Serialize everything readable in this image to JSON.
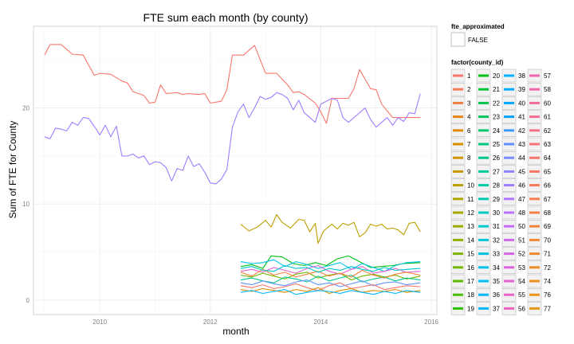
{
  "chart_data": {
    "type": "line",
    "title": "FTE sum each month (by county)",
    "xlabel": "month",
    "ylabel": "Sum of FTE for County",
    "xlim": [
      2008.8,
      2016.1
    ],
    "ylim": [
      -1.5,
      28.5
    ],
    "x_ticks": [
      2010,
      2012,
      2014,
      2016
    ],
    "y_ticks": [
      0,
      10,
      20
    ],
    "grid": true,
    "legend_position": "right",
    "legend_fte": {
      "title": "fte_approximated",
      "entries": [
        "FALSE"
      ]
    },
    "legend_county": {
      "title": "factor(county_id)",
      "entries": [
        {
          "label": "1",
          "color": "#F8766D"
        },
        {
          "label": "2",
          "color": "#F47B58"
        },
        {
          "label": "3",
          "color": "#EE7F3E"
        },
        {
          "label": "4",
          "color": "#E8841C"
        },
        {
          "label": "6",
          "color": "#E18A00"
        },
        {
          "label": "7",
          "color": "#D89000"
        },
        {
          "label": "8",
          "color": "#D09500"
        },
        {
          "label": "9",
          "color": "#C69A00"
        },
        {
          "label": "10",
          "color": "#BC9F00"
        },
        {
          "label": "11",
          "color": "#B2A400"
        },
        {
          "label": "12",
          "color": "#A7A800"
        },
        {
          "label": "13",
          "color": "#9BAC00"
        },
        {
          "label": "14",
          "color": "#8FB000"
        },
        {
          "label": "15",
          "color": "#81B400"
        },
        {
          "label": "16",
          "color": "#72B700"
        },
        {
          "label": "17",
          "color": "#61BA00"
        },
        {
          "label": "18",
          "color": "#4BBD00"
        },
        {
          "label": "19",
          "color": "#2BBF00"
        },
        {
          "label": "20",
          "color": "#00C114"
        },
        {
          "label": "21",
          "color": "#00C336"
        },
        {
          "label": "22",
          "color": "#00C44C"
        },
        {
          "label": "23",
          "color": "#00C65E"
        },
        {
          "label": "24",
          "color": "#00C76F"
        },
        {
          "label": "25",
          "color": "#00C87E"
        },
        {
          "label": "26",
          "color": "#00C88C"
        },
        {
          "label": "27",
          "color": "#00C99A"
        },
        {
          "label": "28",
          "color": "#00C9A7"
        },
        {
          "label": "29",
          "color": "#00C9B3"
        },
        {
          "label": "30",
          "color": "#00C8BF"
        },
        {
          "label": "31",
          "color": "#00C7CA"
        },
        {
          "label": "32",
          "color": "#00C6D5"
        },
        {
          "label": "33",
          "color": "#00C4DF"
        },
        {
          "label": "34",
          "color": "#00C1E9"
        },
        {
          "label": "35",
          "color": "#00BEF2"
        },
        {
          "label": "36",
          "color": "#00BAFA"
        },
        {
          "label": "37",
          "color": "#00B6FF"
        },
        {
          "label": "38",
          "color": "#00B1FF"
        },
        {
          "label": "39",
          "color": "#00ACFF"
        },
        {
          "label": "40",
          "color": "#00A6FF"
        },
        {
          "label": "41",
          "color": "#00A0FF"
        },
        {
          "label": "42",
          "color": "#3D99FF"
        },
        {
          "label": "43",
          "color": "#6292FF"
        },
        {
          "label": "44",
          "color": "#7B8BFF"
        },
        {
          "label": "45",
          "color": "#8F84FF"
        },
        {
          "label": "46",
          "color": "#A07DFF"
        },
        {
          "label": "47",
          "color": "#AE77FF"
        },
        {
          "label": "48",
          "color": "#BA71FB"
        },
        {
          "label": "50",
          "color": "#C56CF5"
        },
        {
          "label": "51",
          "color": "#CE68EE"
        },
        {
          "label": "52",
          "color": "#D665E6"
        },
        {
          "label": "53",
          "color": "#DD63DD"
        },
        {
          "label": "54",
          "color": "#E362D3"
        },
        {
          "label": "55",
          "color": "#E862C9"
        },
        {
          "label": "56",
          "color": "#EC63BE"
        },
        {
          "label": "57",
          "color": "#EF65B3"
        },
        {
          "label": "58",
          "color": "#F267A8"
        },
        {
          "label": "60",
          "color": "#F46A9C"
        },
        {
          "label": "61",
          "color": "#F56D91"
        },
        {
          "label": "62",
          "color": "#F67085"
        },
        {
          "label": "63",
          "color": "#F6737A"
        },
        {
          "label": "64",
          "color": "#F7756F"
        },
        {
          "label": "65",
          "color": "#F77864"
        },
        {
          "label": "66",
          "color": "#F77B5A"
        },
        {
          "label": "67",
          "color": "#F67E50"
        },
        {
          "label": "68",
          "color": "#F58146"
        },
        {
          "label": "69",
          "color": "#F4843D"
        },
        {
          "label": "70",
          "color": "#F28735"
        },
        {
          "label": "71",
          "color": "#F08A2D"
        },
        {
          "label": "72",
          "color": "#EE8D26"
        },
        {
          "label": "74",
          "color": "#EC9020"
        },
        {
          "label": "76",
          "color": "#E9931B"
        },
        {
          "label": "77",
          "color": "#E69617"
        }
      ]
    },
    "series": [
      {
        "color": "#F8766D",
        "x": [
          2009.0,
          2009.1,
          2009.3,
          2009.5,
          2009.7,
          2009.9,
          2010.0,
          2010.2,
          2010.4,
          2010.5,
          2010.6,
          2010.8,
          2010.9,
          2011.0,
          2011.1,
          2011.2,
          2011.4,
          2011.5,
          2011.6,
          2011.8,
          2011.9,
          2012.0,
          2012.1,
          2012.2,
          2012.3,
          2012.4,
          2012.6,
          2012.8,
          2012.85,
          2013.0,
          2013.2,
          2013.4,
          2013.5,
          2013.6,
          2013.7,
          2013.9,
          2014.0,
          2014.1,
          2014.2,
          2014.4,
          2014.5,
          2014.6,
          2014.7,
          2014.9,
          2015.0,
          2015.1,
          2015.3,
          2015.5,
          2015.7,
          2015.8
        ],
        "y": [
          25.5,
          26.6,
          26.6,
          25.6,
          25.5,
          23.4,
          23.6,
          23.5,
          22.8,
          22.6,
          21.7,
          21.3,
          20.5,
          20.6,
          22.4,
          21.5,
          21.6,
          21.4,
          21.5,
          21.4,
          21.5,
          20.5,
          20.6,
          20.7,
          21.9,
          25.5,
          25.5,
          26.5,
          25.8,
          23.6,
          23.6,
          22.4,
          21.6,
          21.7,
          21.4,
          20.5,
          19.6,
          18.4,
          21.0,
          21.0,
          21.0,
          22.0,
          24.0,
          22.0,
          21.9,
          20.4,
          19.0,
          19.0,
          19.0,
          19.0
        ]
      },
      {
        "color": "#A07DFF",
        "x": [
          2009.0,
          2009.1,
          2009.2,
          2009.3,
          2009.4,
          2009.5,
          2009.6,
          2009.7,
          2009.8,
          2009.9,
          2010.0,
          2010.1,
          2010.2,
          2010.3,
          2010.4,
          2010.5,
          2010.6,
          2010.7,
          2010.8,
          2010.9,
          2011.0,
          2011.1,
          2011.2,
          2011.3,
          2011.4,
          2011.5,
          2011.6,
          2011.7,
          2011.8,
          2011.9,
          2012.0,
          2012.1,
          2012.2,
          2012.3,
          2012.4,
          2012.5,
          2012.6,
          2012.7,
          2012.8,
          2012.9,
          2013.0,
          2013.1,
          2013.2,
          2013.3,
          2013.4,
          2013.5,
          2013.6,
          2013.7,
          2013.8,
          2013.9,
          2014.0,
          2014.1,
          2014.2,
          2014.3,
          2014.4,
          2014.5,
          2014.6,
          2014.7,
          2014.8,
          2014.9,
          2015.0,
          2015.1,
          2015.2,
          2015.3,
          2015.4,
          2015.5,
          2015.6,
          2015.7,
          2015.8
        ],
        "y": [
          17.0,
          16.8,
          17.9,
          17.8,
          17.6,
          18.5,
          18.2,
          19.0,
          18.9,
          18.1,
          17.2,
          18.2,
          17.0,
          18.1,
          15.0,
          15.0,
          15.2,
          14.8,
          15.0,
          14.1,
          14.4,
          14.3,
          13.8,
          12.4,
          13.7,
          13.5,
          15.0,
          13.9,
          14.2,
          13.3,
          12.2,
          12.1,
          12.6,
          13.6,
          18.0,
          19.6,
          20.4,
          19.0,
          20.0,
          21.2,
          20.9,
          21.1,
          21.6,
          21.4,
          21.0,
          19.8,
          20.8,
          19.5,
          19.0,
          18.5,
          20.4,
          20.7,
          21.0,
          20.8,
          19.0,
          18.5,
          19.0,
          19.5,
          20.0,
          18.8,
          18.0,
          18.5,
          19.0,
          18.2,
          19.0,
          18.6,
          19.5,
          19.4,
          21.5
        ]
      },
      {
        "color": "#BC9F00",
        "x": [
          2012.55,
          2012.7,
          2012.85,
          2013.0,
          2013.1,
          2013.2,
          2013.3,
          2013.45,
          2013.6,
          2013.7,
          2013.8,
          2013.9,
          2013.95,
          2014.05,
          2014.2,
          2014.3,
          2014.4,
          2014.5,
          2014.6,
          2014.7,
          2014.8,
          2014.9,
          2015.0,
          2015.1,
          2015.2,
          2015.3,
          2015.4,
          2015.5,
          2015.6,
          2015.7,
          2015.8
        ],
        "y": [
          7.9,
          7.2,
          7.6,
          8.3,
          7.6,
          8.9,
          8.1,
          7.5,
          8.4,
          8.3,
          7.1,
          8.0,
          5.9,
          7.2,
          7.9,
          7.4,
          8.0,
          7.8,
          8.1,
          6.6,
          7.0,
          7.9,
          7.7,
          7.9,
          7.4,
          7.5,
          7.3,
          6.8,
          8.0,
          8.1,
          7.1
        ]
      },
      {
        "color": "#00C114",
        "x": [
          2012.55,
          2012.75,
          2012.95,
          2013.1,
          2013.3,
          2013.5,
          2013.7,
          2013.9,
          2014.1,
          2014.3,
          2014.5,
          2014.7,
          2014.9,
          2015.1,
          2015.3,
          2015.5,
          2015.8
        ],
        "y": [
          3.5,
          3.7,
          3.3,
          4.6,
          4.5,
          3.8,
          3.6,
          3.9,
          3.6,
          4.3,
          4.6,
          4.0,
          3.4,
          3.5,
          3.6,
          3.8,
          3.9
        ]
      },
      {
        "color": "#00C1E9",
        "x": [
          2012.55,
          2012.75,
          2012.95,
          2013.15,
          2013.35,
          2013.55,
          2013.75,
          2013.95,
          2014.15,
          2014.35,
          2014.55,
          2014.75,
          2014.95,
          2015.15,
          2015.35,
          2015.55,
          2015.8
        ],
        "y": [
          4.0,
          3.8,
          3.9,
          4.2,
          3.5,
          4.0,
          3.7,
          3.3,
          3.6,
          3.9,
          3.2,
          3.8,
          3.4,
          3.0,
          3.6,
          3.9,
          4.0
        ]
      },
      {
        "color": "#E362D3",
        "x": [
          2012.55,
          2012.75,
          2012.95,
          2013.15,
          2013.35,
          2013.55,
          2013.75,
          2013.95,
          2014.15,
          2014.35,
          2014.55,
          2014.75,
          2014.95,
          2015.15,
          2015.35,
          2015.55,
          2015.8
        ],
        "y": [
          3.0,
          3.2,
          2.9,
          3.4,
          3.1,
          2.8,
          3.3,
          3.6,
          3.0,
          2.7,
          3.2,
          3.5,
          2.8,
          3.0,
          3.3,
          2.9,
          3.0
        ]
      },
      {
        "color": "#72B700",
        "x": [
          2012.55,
          2012.75,
          2012.95,
          2013.15,
          2013.35,
          2013.55,
          2013.75,
          2013.95,
          2014.15,
          2014.35,
          2014.55,
          2014.75,
          2014.95,
          2015.15,
          2015.35,
          2015.55,
          2015.8
        ],
        "y": [
          2.6,
          2.4,
          2.8,
          2.5,
          2.2,
          2.7,
          2.9,
          2.3,
          2.6,
          2.8,
          2.1,
          2.5,
          2.7,
          2.4,
          2.6,
          2.2,
          2.5
        ]
      },
      {
        "color": "#00C88C",
        "x": [
          2012.55,
          2012.75,
          2012.95,
          2013.15,
          2013.35,
          2013.55,
          2013.75,
          2013.95,
          2014.15,
          2014.35,
          2014.55,
          2014.75,
          2014.95,
          2015.15,
          2015.35,
          2015.55,
          2015.8
        ],
        "y": [
          2.1,
          2.3,
          2.0,
          1.8,
          2.4,
          2.2,
          1.9,
          2.5,
          2.0,
          2.3,
          2.6,
          1.9,
          2.2,
          2.4,
          2.0,
          2.3,
          2.1
        ]
      },
      {
        "color": "#6292FF",
        "x": [
          2012.55,
          2012.75,
          2012.95,
          2013.15,
          2013.35,
          2013.55,
          2013.75,
          2013.95,
          2014.15,
          2014.35,
          2014.55,
          2014.75,
          2014.95,
          2015.15,
          2015.35,
          2015.55,
          2015.8
        ],
        "y": [
          1.8,
          1.6,
          2.0,
          1.7,
          1.5,
          1.9,
          2.1,
          1.6,
          1.8,
          1.4,
          1.7,
          2.0,
          1.5,
          1.8,
          1.9,
          1.6,
          1.8
        ]
      },
      {
        "color": "#F8766D",
        "x": [
          2012.55,
          2012.75,
          2012.95,
          2013.15,
          2013.35,
          2013.55,
          2013.75,
          2013.95,
          2014.15,
          2014.35,
          2014.55,
          2014.75,
          2014.95,
          2015.15,
          2015.35,
          2015.55,
          2015.8
        ],
        "y": [
          1.5,
          1.3,
          1.6,
          1.2,
          1.4,
          1.7,
          1.3,
          1.0,
          1.5,
          1.8,
          1.2,
          1.4,
          1.6,
          1.1,
          1.3,
          1.5,
          1.4
        ]
      },
      {
        "color": "#D89000",
        "x": [
          2012.55,
          2012.75,
          2012.95,
          2013.15,
          2013.35,
          2013.55,
          2013.75,
          2013.95,
          2014.15,
          2014.35,
          2014.55,
          2014.75,
          2014.95,
          2015.15,
          2015.35,
          2015.55,
          2015.8
        ],
        "y": [
          1.1,
          0.9,
          1.2,
          1.0,
          0.8,
          1.1,
          0.9,
          1.3,
          0.7,
          1.0,
          1.2,
          0.8,
          1.0,
          0.9,
          1.1,
          0.8,
          1.0
        ]
      },
      {
        "color": "#00B6FF",
        "x": [
          2012.55,
          2012.75,
          2012.95,
          2013.15,
          2013.35,
          2013.55,
          2013.75,
          2013.95,
          2014.15,
          2014.35,
          2014.55,
          2014.75,
          2014.95,
          2015.15,
          2015.35,
          2015.55,
          2015.8
        ],
        "y": [
          0.8,
          1.0,
          0.7,
          0.9,
          1.1,
          0.6,
          0.8,
          1.0,
          0.9,
          0.7,
          1.0,
          0.8,
          0.6,
          0.9,
          0.7,
          1.0,
          0.8
        ]
      },
      {
        "color": "#F4843D",
        "x": [
          2012.55,
          2012.75,
          2012.95,
          2013.15,
          2013.35,
          2013.55,
          2013.75,
          2013.95,
          2014.15,
          2014.35,
          2014.55,
          2014.75,
          2014.95,
          2015.15,
          2015.35,
          2015.55,
          2015.8
        ],
        "y": [
          2.9,
          2.5,
          3.2,
          2.6,
          2.9,
          2.4,
          2.7,
          3.0,
          2.5,
          2.8,
          2.4,
          3.1,
          2.6,
          2.3,
          2.7,
          2.9,
          2.6
        ]
      },
      {
        "color": "#00C7CA",
        "x": [
          2012.55,
          2012.75,
          2012.95,
          2013.15,
          2013.35,
          2013.55,
          2013.75,
          2013.95,
          2014.15,
          2014.35,
          2014.55,
          2014.75,
          2014.95,
          2015.15,
          2015.35,
          2015.55,
          2015.8
        ],
        "y": [
          3.3,
          3.5,
          3.1,
          3.0,
          3.6,
          3.3,
          3.4,
          2.9,
          3.3,
          3.1,
          3.5,
          3.2,
          3.0,
          3.4,
          3.1,
          3.2,
          3.3
        ]
      }
    ]
  }
}
